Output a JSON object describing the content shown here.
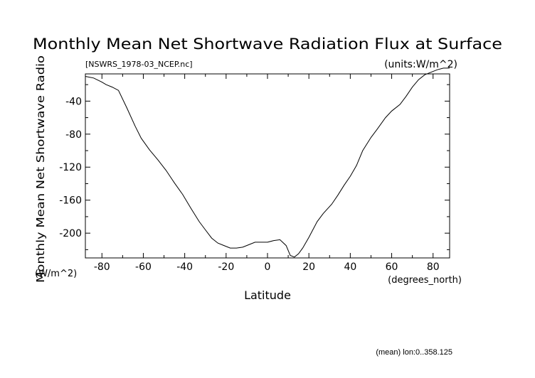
{
  "chart_data": {
    "type": "line",
    "title": "Monthly Mean Net Shortwave Radiation Flux at Surface",
    "file_label": "[NSWRS_1978-03_NCEP.nc]",
    "units_label": "(units:W/m^2)",
    "ylabel": "Monthly Mean Net Shortwave Radio",
    "yunits": "(W/m^2)",
    "xlabel": "Latitude",
    "xunits": "(degrees_north)",
    "footnote": "(mean) lon:0..358.125",
    "xlim": [
      -88,
      88
    ],
    "ylim": [
      -230,
      -7
    ],
    "xticks": [
      -80,
      -60,
      -40,
      -20,
      0,
      20,
      40,
      60,
      80
    ],
    "yticks": [
      -40,
      -80,
      -120,
      -160,
      -200
    ],
    "grid": false,
    "series": [
      {
        "x": [
          -88,
          -84,
          -80,
          -78,
          -75,
          -72,
          -68,
          -64,
          -61,
          -57,
          -53,
          -49,
          -45,
          -41,
          -37,
          -33,
          -30,
          -27,
          -24,
          -21,
          -18,
          -15,
          -12,
          -9,
          -6,
          -3,
          0,
          3,
          6,
          9,
          11,
          13,
          15,
          17,
          20,
          24,
          27,
          31,
          34,
          37,
          40,
          43,
          46,
          50,
          53,
          57,
          60,
          64,
          67,
          70,
          73,
          76,
          79,
          82,
          85,
          88
        ],
        "y": [
          -10,
          -12,
          -17,
          -20,
          -23,
          -27,
          -48,
          -70,
          -85,
          -99,
          -111,
          -124,
          -139,
          -153,
          -170,
          -186,
          -196,
          -206,
          -212,
          -215,
          -218,
          -218,
          -217,
          -214,
          -211,
          -211,
          -211,
          -209,
          -208,
          -215,
          -227,
          -229,
          -225,
          -218,
          -205,
          -186,
          -176,
          -165,
          -154,
          -142,
          -131,
          -118,
          -100,
          -84,
          -74,
          -60,
          -52,
          -44,
          -34,
          -23,
          -14,
          -8,
          -5,
          -2,
          0,
          0
        ]
      }
    ]
  }
}
